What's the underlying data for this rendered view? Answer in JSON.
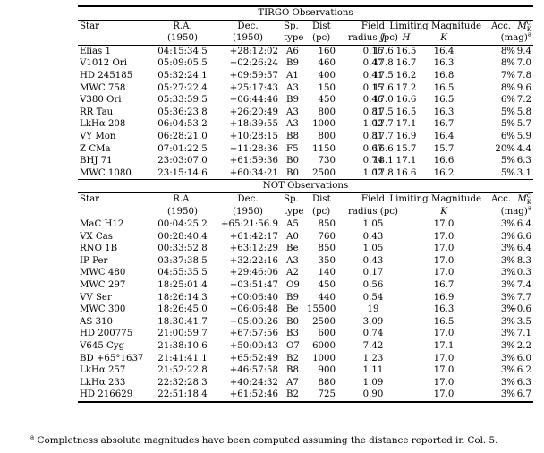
{
  "tirgo": {
    "title": "TIRGO Observations",
    "headers": {
      "star": "Star",
      "ra": "R.A.",
      "ra_year": "(1950)",
      "dec": "Dec.",
      "dec_year": "(1950)",
      "sp": "Sp.",
      "sp2": "type",
      "dist": "Dist",
      "dist_unit": "(pc)",
      "field": "Field",
      "field2": "radius (pc)",
      "limmag": "Limiting Magnitude",
      "j": "J",
      "h": "H",
      "k": "K",
      "acc": "Acc.",
      "mk": "M",
      "mk_sup": "c",
      "mk_sub": "K",
      "mk_unit": "(mag)",
      "mk_unit_sup": "a"
    },
    "rows": [
      [
        "Elias 1",
        "04:15:34.5",
        "+28:12:02",
        "A6",
        "160",
        "0.16",
        "17.6",
        "16.5",
        "16.4",
        "8%",
        "9.4"
      ],
      [
        "V1012 Ori",
        "05:09:05.5",
        "−02:26:24",
        "B9",
        "460",
        "0.47",
        "17.8",
        "16.7",
        "16.3",
        "8%",
        "7.0"
      ],
      [
        "HD 245185",
        "05:32:24.1",
        "+09:59:57",
        "A1",
        "400",
        "0.41",
        "17.5",
        "16.2",
        "16.8",
        "7%",
        "7.8"
      ],
      [
        "MWC 758",
        "05:27:22.4",
        "+25:17:43",
        "A3",
        "150",
        "0.15",
        "17.6",
        "17.2",
        "16.5",
        "8%",
        "9.6"
      ],
      [
        "V380 Ori",
        "05:33:59.5",
        "−06:44:46",
        "B9",
        "450",
        "0.46",
        "17.0",
        "16.6",
        "16.5",
        "6%",
        "7.2"
      ],
      [
        "RR Tau",
        "05:36:23.8",
        "+26:20:49",
        "A3",
        "800",
        "0.81",
        "17.5",
        "16.5",
        "16.3",
        "5%",
        "5.8"
      ],
      [
        "LkHα 208",
        "06:04:53.2",
        "+18:39:55",
        "A3",
        "1000",
        "1.02",
        "17.7",
        "17.1",
        "16.7",
        "5%",
        "5.7"
      ],
      [
        "VY Mon",
        "06:28:21.0",
        "+10:28:15",
        "B8",
        "800",
        "0.81",
        "17.7",
        "16.9",
        "16.4",
        "6%",
        "5.9"
      ],
      [
        "Z CMa",
        "07:01:22.5",
        "−11:28:36",
        "F5",
        "1150",
        "0.67",
        "16.6",
        "15.7",
        "15.7",
        "20%",
        "4.4"
      ],
      [
        "BHJ 71",
        "23:03:07.0",
        "+61:59:36",
        "B0",
        "730",
        "0.74",
        "18.1",
        "17.1",
        "16.6",
        "5%",
        "6.3"
      ],
      [
        "MWC 1080",
        "23:15:14.6",
        "+60:34:21",
        "B0",
        "2500",
        "1.02",
        "17.8",
        "16.6",
        "16.2",
        "5%",
        "3.1"
      ]
    ]
  },
  "not": {
    "title": "NOT Observations",
    "headers": {
      "star": "Star",
      "ra": "R.A.",
      "ra_year": "(1950)",
      "dec": "Dec.",
      "dec_year": "(1950)",
      "sp": "Sp.",
      "sp2": "type",
      "dist": "Dist",
      "dist_unit": "(pc)",
      "field": "Field",
      "field2": "radius (pc)",
      "limmag": "Limiting Magnitude",
      "k": "K",
      "acc": "Acc.",
      "mk": "M",
      "mk_sup": "c",
      "mk_sub": "K",
      "mk_unit": "(mag)",
      "mk_unit_sup": "a"
    },
    "rows": [
      [
        "MaC H12",
        "00:04:25.2",
        "+65:21:56.9",
        "A5",
        "850",
        "1.05",
        "17.0",
        "3%",
        "6.4"
      ],
      [
        "VX Cas",
        "00:28:40.4",
        "+61:42:17",
        "A0",
        "760",
        "0.43",
        "17.0",
        "3%",
        "6.6"
      ],
      [
        "RNO 1B",
        "00:33:52.8",
        "+63:12:29",
        "Be",
        "850",
        "1.05",
        "17.0",
        "3%",
        "6.4"
      ],
      [
        "IP Per",
        "03:37:38.5",
        "+32:22:16",
        "A3",
        "350",
        "0.43",
        "17.0",
        "3%",
        "8.3"
      ],
      [
        "MWC 480",
        "04:55:35.5",
        "+29:46:06",
        "A2",
        "140",
        "0.17",
        "17.0",
        "3%",
        "10.3"
      ],
      [
        "MWC 297",
        "18:25:01.4",
        "−03:51:47",
        "O9",
        "450",
        "0.56",
        "16.7",
        "3%",
        "7.4"
      ],
      [
        "VV Ser",
        "18:26:14.3",
        "+00:06:40",
        "B9",
        "440",
        "0.54",
        "16.9",
        "3%",
        "7.7"
      ],
      [
        "MWC 300",
        "18:26:45.0",
        "−06:06:48",
        "Be",
        "15500",
        "19",
        "16.3",
        "3%",
        "−0.6"
      ],
      [
        "AS 310",
        "18:30:41.7",
        "−05:00:26",
        "B0",
        "2500",
        "3.09",
        "16.5",
        "3%",
        "3.5"
      ],
      [
        "HD 200775",
        "21:00:59.7",
        "+67:57:56",
        "B3",
        "600",
        "0.74",
        "17.0",
        "3%",
        "7.1"
      ],
      [
        "V645  Cyg",
        "21:38:10.6",
        "+50:00:43",
        "O7",
        "6000",
        "7.42",
        "17.1",
        "3%",
        "2.2"
      ],
      [
        "BD +65°1637",
        "21:41:41.1",
        "+65:52:49",
        "B2",
        "1000",
        "1.23",
        "17.0",
        "3%",
        "6.0"
      ],
      [
        "LkHα 257",
        "21:52:22.8",
        "+46:57:58",
        "B8",
        "900",
        "1.11",
        "17.0",
        "3%",
        "6.2"
      ],
      [
        "LkHα 233",
        "22:32:28.3",
        "+40:24:32",
        "A7",
        "880",
        "1.09",
        "17.0",
        "3%",
        "6.3"
      ],
      [
        "HD 216629",
        "22:51:18.4",
        "+61:52:46",
        "B2",
        "725",
        "0.90",
        "17.0",
        "3%",
        "6.7"
      ]
    ]
  },
  "footnote": {
    "marker": "a",
    "text": " Completness absolute magnitudes have been computed assuming the distance reported in Col. 5."
  }
}
